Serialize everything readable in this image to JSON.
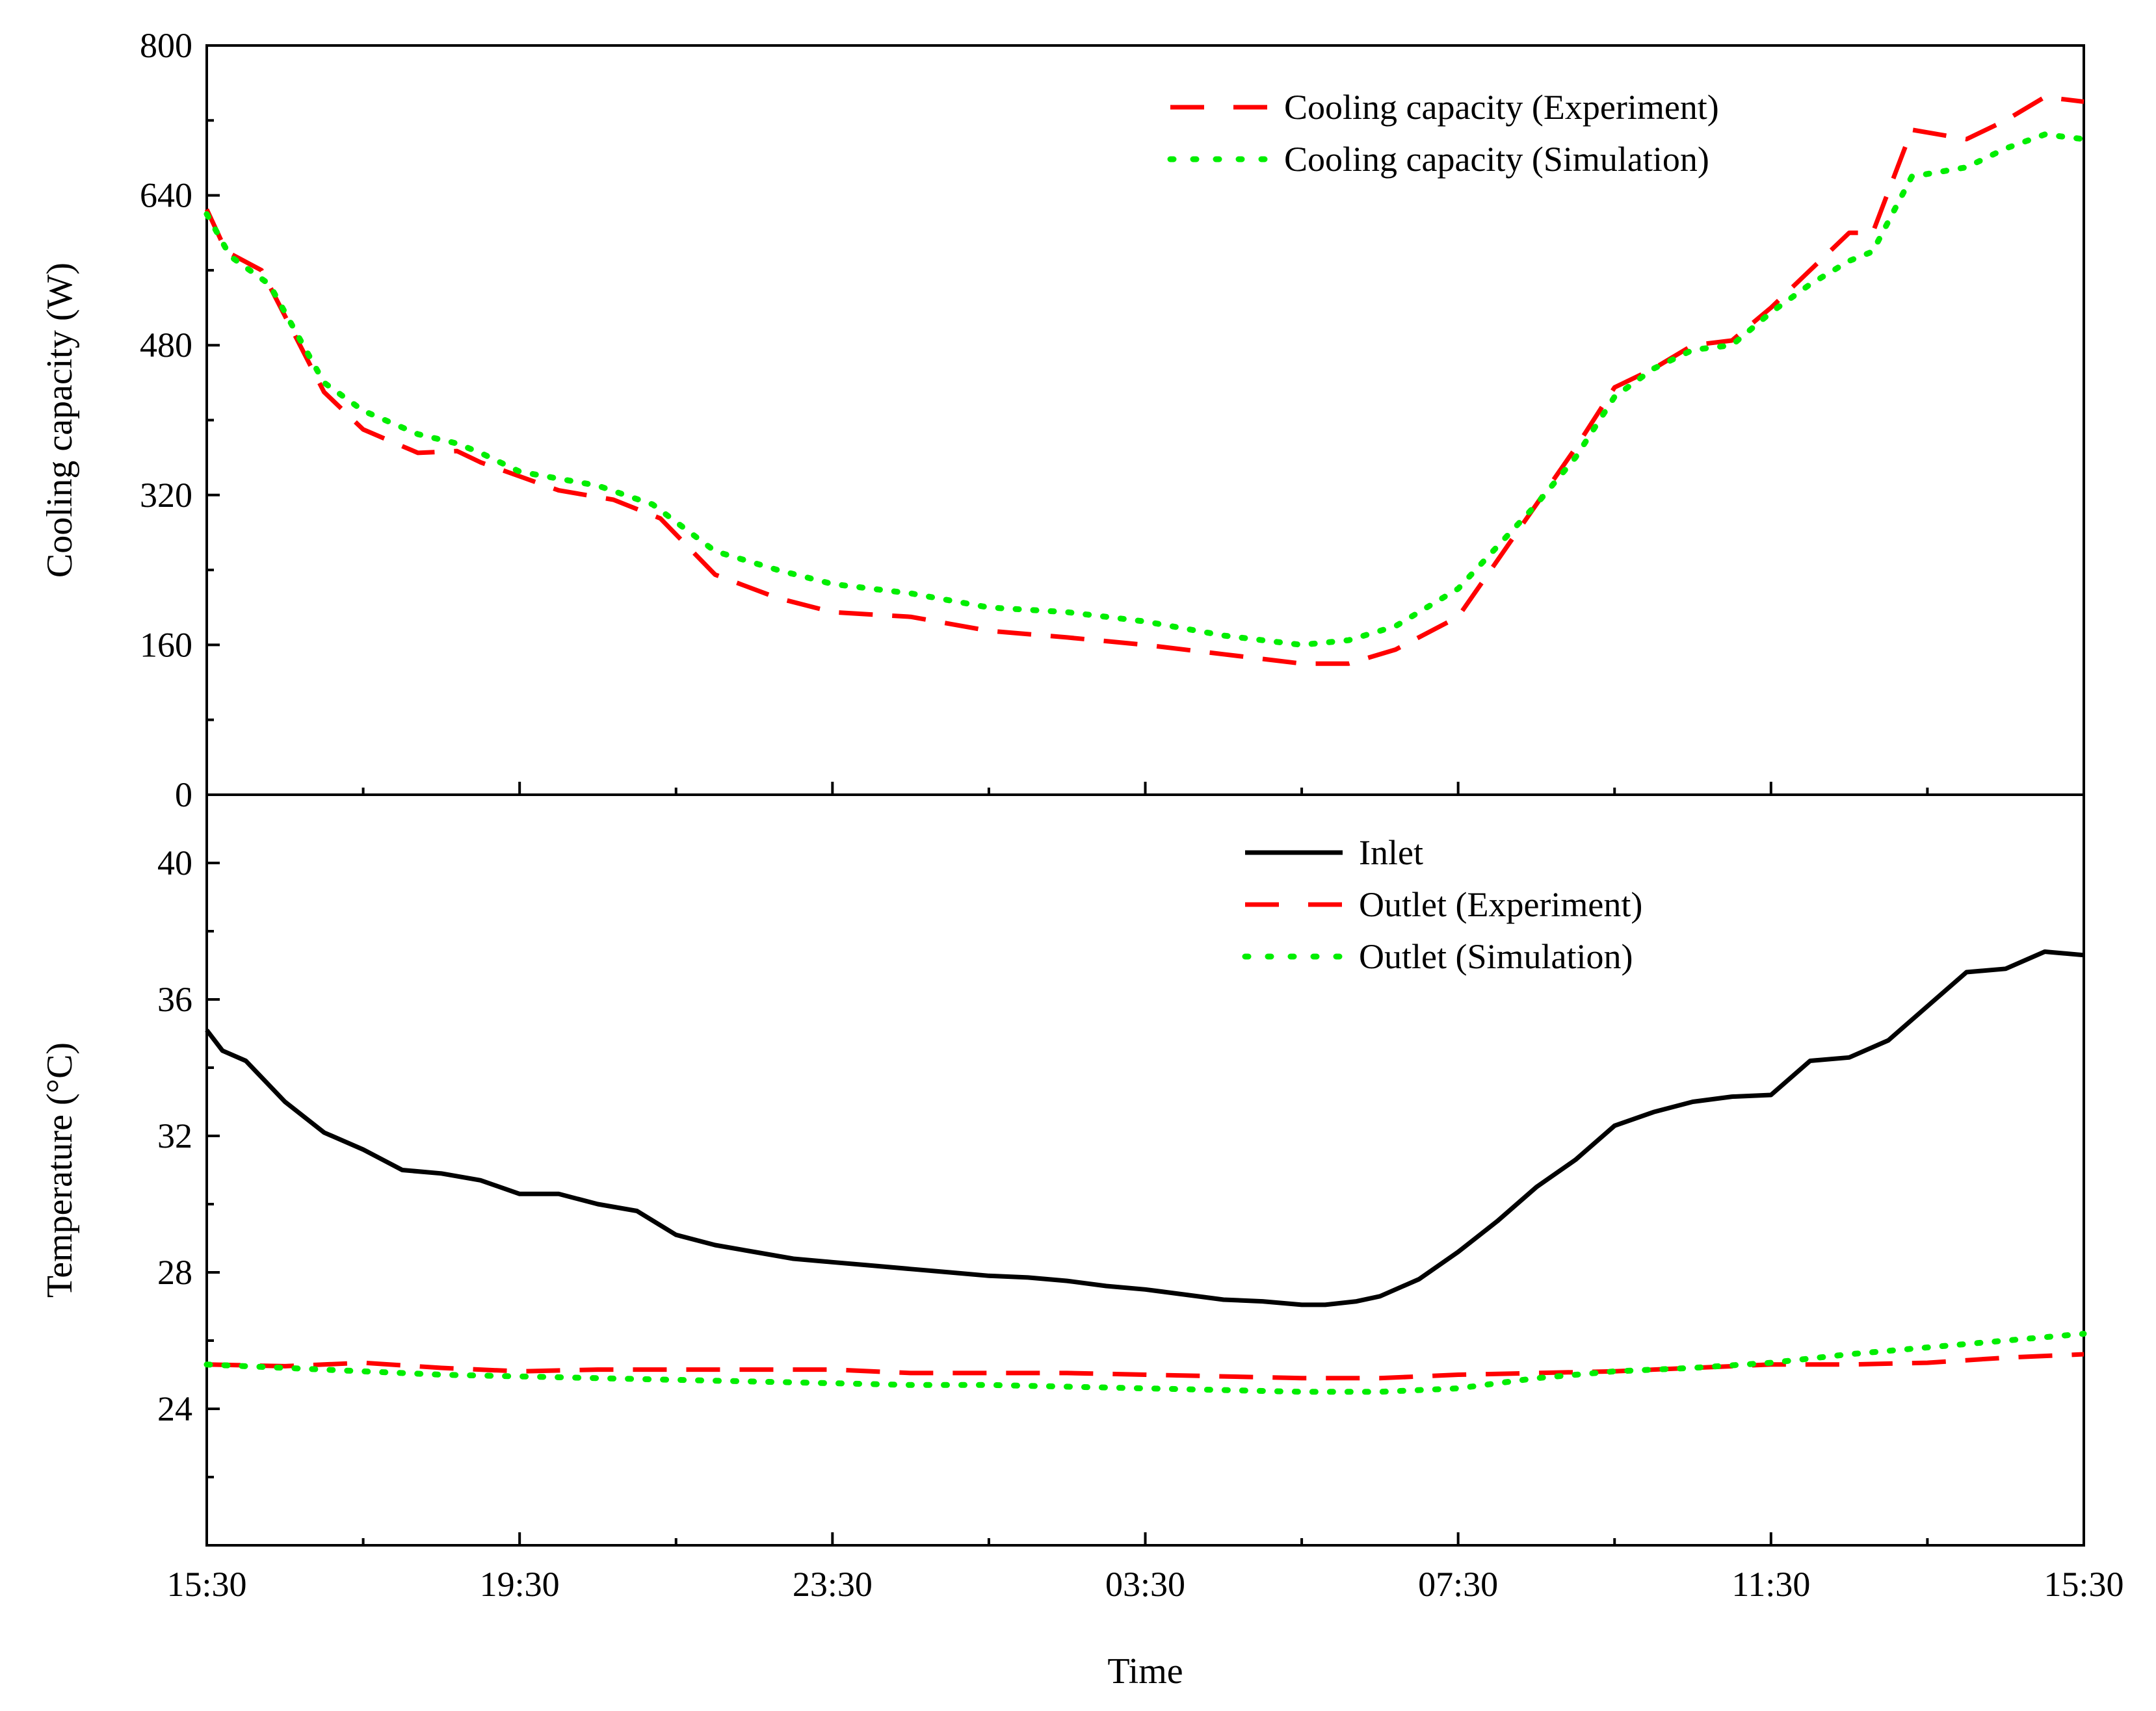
{
  "chart_data": [
    {
      "type": "line",
      "panel": "top",
      "title": "",
      "xlabel": "",
      "ylabel": "Cooling capacity (W)",
      "ylim": [
        0,
        800
      ],
      "yticks": [
        0,
        160,
        320,
        480,
        640,
        800
      ],
      "xlim": [
        0,
        24
      ],
      "legend_position": "top-right",
      "series": [
        {
          "name": "Cooling capacity (Experiment)",
          "color": "#ff0000",
          "style": "dashed",
          "x": [
            0,
            0.25,
            0.7,
            1.5,
            2.0,
            2.7,
            3.2,
            3.5,
            4.0,
            4.5,
            5.2,
            5.8,
            6.5,
            7.3,
            8.0,
            9.0,
            10.0,
            11.0,
            12.0,
            13.0,
            14.0,
            14.6,
            15.2,
            16.0,
            16.5,
            17.0,
            17.5,
            18.0,
            18.5,
            19.0,
            19.5,
            20.0,
            20.5,
            21.0,
            21.3,
            21.8,
            22.5,
            23.0,
            23.5,
            24.0
          ],
          "y": [
            625,
            580,
            560,
            430,
            390,
            365,
            367,
            355,
            340,
            325,
            315,
            295,
            235,
            210,
            195,
            190,
            175,
            168,
            160,
            150,
            140,
            140,
            155,
            190,
            250,
            310,
            370,
            435,
            455,
            480,
            485,
            520,
            560,
            600,
            600,
            710,
            700,
            720,
            745,
            740
          ]
        },
        {
          "name": "Cooling capacity (Simulation)",
          "color": "#00ee00",
          "style": "dotted",
          "x": [
            0,
            0.3,
            0.8,
            1.5,
            2.0,
            2.7,
            3.2,
            3.5,
            4.0,
            5.0,
            5.7,
            6.5,
            7.3,
            8.0,
            9.0,
            10.0,
            11.0,
            12.0,
            13.0,
            14.0,
            14.6,
            15.2,
            16.0,
            16.5,
            17.0,
            17.5,
            18.0,
            18.5,
            19.0,
            19.5,
            20.0,
            20.5,
            21.0,
            21.3,
            21.8,
            22.5,
            23.0,
            23.5,
            24.0
          ],
          "y": [
            620,
            575,
            545,
            440,
            410,
            385,
            375,
            365,
            345,
            330,
            310,
            260,
            240,
            225,
            215,
            200,
            195,
            185,
            170,
            160,
            165,
            180,
            220,
            265,
            310,
            360,
            425,
            455,
            475,
            480,
            515,
            545,
            570,
            580,
            660,
            670,
            690,
            705,
            700
          ]
        }
      ]
    },
    {
      "type": "line",
      "panel": "bottom",
      "title": "",
      "xlabel": "Time",
      "ylabel": "Temperature (°C)",
      "ylim": [
        20,
        42
      ],
      "yticks": [
        24,
        28,
        32,
        36,
        40
      ],
      "xlim": [
        0,
        24
      ],
      "xtick_labels": [
        "15:30",
        "19:30",
        "23:30",
        "03:30",
        "07:30",
        "11:30",
        "15:30"
      ],
      "xtick_values": [
        0,
        4,
        8,
        12,
        16,
        20,
        24
      ],
      "legend_position": "top-right",
      "series": [
        {
          "name": "Inlet",
          "color": "#000000",
          "style": "solid",
          "x": [
            0,
            0.2,
            0.5,
            1.0,
            1.5,
            2.0,
            2.5,
            3.0,
            3.5,
            4.0,
            4.5,
            5.0,
            5.5,
            6.0,
            6.5,
            7.0,
            7.5,
            8.0,
            8.5,
            9.0,
            9.5,
            10.0,
            10.5,
            11.0,
            11.5,
            12.0,
            12.5,
            13.0,
            13.5,
            14.0,
            14.3,
            14.7,
            15.0,
            15.5,
            16.0,
            16.5,
            17.0,
            17.5,
            18.0,
            18.5,
            19.0,
            19.5,
            20.0,
            20.5,
            21.0,
            21.5,
            22.0,
            22.5,
            23.0,
            23.5,
            24.0
          ],
          "y": [
            35.1,
            34.5,
            34.2,
            33.0,
            32.1,
            31.6,
            31.0,
            30.9,
            30.7,
            30.3,
            30.3,
            30.0,
            29.8,
            29.1,
            28.8,
            28.6,
            28.4,
            28.3,
            28.2,
            28.1,
            28.0,
            27.9,
            27.85,
            27.75,
            27.6,
            27.5,
            27.35,
            27.2,
            27.15,
            27.05,
            27.05,
            27.15,
            27.3,
            27.8,
            28.6,
            29.5,
            30.5,
            31.3,
            32.3,
            32.7,
            33.0,
            33.15,
            33.2,
            34.2,
            34.3,
            34.8,
            35.8,
            36.8,
            36.9,
            37.4,
            37.3
          ]
        },
        {
          "name": "Outlet (Experiment)",
          "color": "#ff0000",
          "style": "dashed",
          "x": [
            0,
            1.0,
            2.0,
            3.0,
            4.0,
            5.0,
            6.0,
            7.0,
            8.0,
            9.0,
            10.0,
            11.0,
            12.0,
            13.0,
            14.0,
            14.6,
            15.0,
            16.0,
            17.0,
            18.0,
            19.0,
            20.0,
            21.0,
            22.0,
            23.0,
            24.0
          ],
          "y": [
            25.3,
            25.25,
            25.35,
            25.2,
            25.1,
            25.15,
            25.15,
            25.15,
            25.15,
            25.05,
            25.05,
            25.05,
            25.0,
            24.95,
            24.9,
            24.9,
            24.9,
            25.0,
            25.05,
            25.1,
            25.2,
            25.3,
            25.3,
            25.35,
            25.5,
            25.6
          ]
        },
        {
          "name": "Outlet (Simulation)",
          "color": "#00ee00",
          "style": "dotted",
          "x": [
            0,
            1.0,
            2.0,
            3.0,
            4.0,
            5.0,
            6.0,
            7.0,
            8.0,
            9.0,
            10.0,
            11.0,
            12.0,
            13.0,
            14.0,
            14.6,
            15.0,
            16.0,
            17.0,
            18.0,
            19.0,
            20.0,
            21.0,
            22.0,
            23.0,
            24.0
          ],
          "y": [
            25.3,
            25.2,
            25.1,
            25.0,
            24.95,
            24.9,
            24.85,
            24.8,
            24.75,
            24.7,
            24.7,
            24.65,
            24.6,
            24.55,
            24.5,
            24.5,
            24.5,
            24.6,
            24.9,
            25.1,
            25.2,
            25.35,
            25.6,
            25.8,
            26.0,
            26.2
          ]
        }
      ]
    }
  ]
}
